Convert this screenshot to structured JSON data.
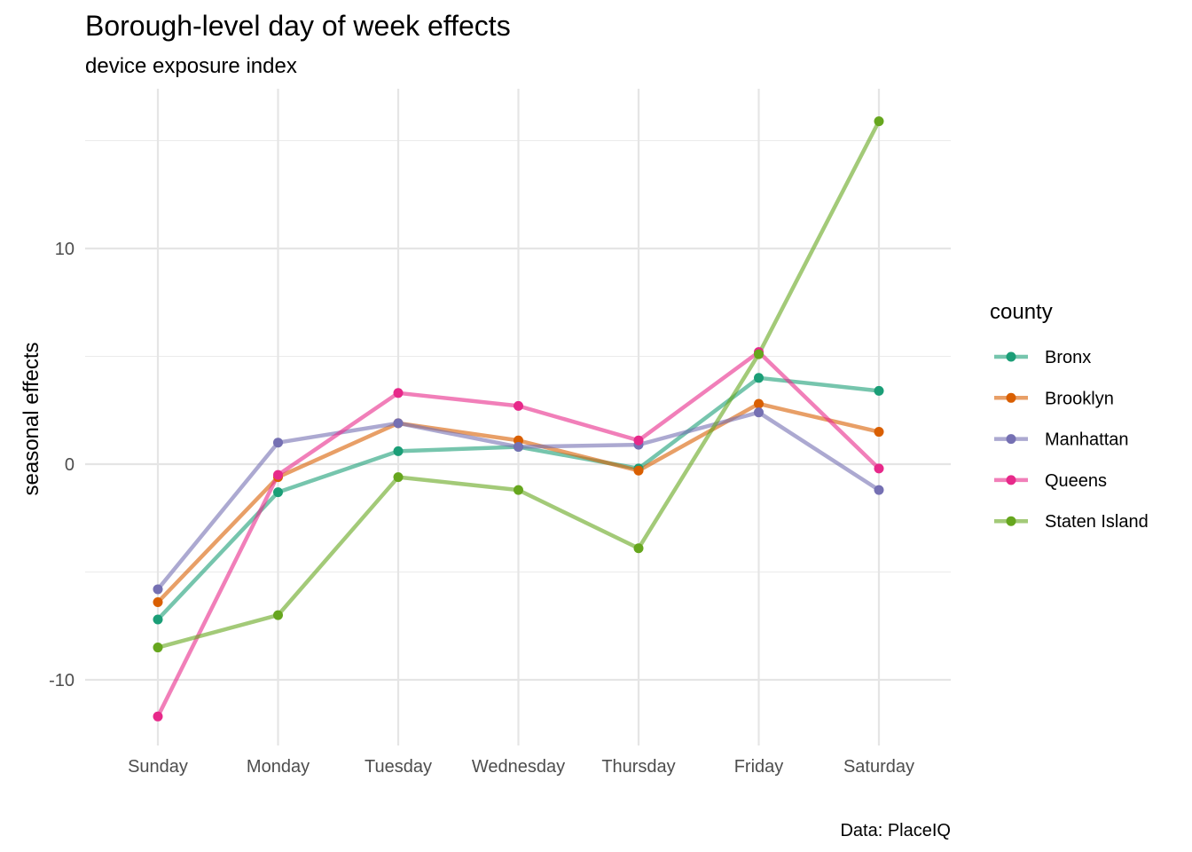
{
  "chart_data": {
    "type": "line",
    "title": "Borough-level day of week effects",
    "subtitle": "device exposure index",
    "xlabel": "",
    "ylabel": "seasonal effects",
    "caption": "Data: PlaceIQ",
    "categories": [
      "Sunday",
      "Monday",
      "Tuesday",
      "Wednesday",
      "Thursday",
      "Friday",
      "Saturday"
    ],
    "ylim": [
      -12.6,
      17.5
    ],
    "yticks": [
      -10,
      0,
      10
    ],
    "grid": true,
    "legend": {
      "title": "county",
      "position": "right"
    },
    "series": [
      {
        "name": "Bronx",
        "color": "#1b9e77",
        "values": [
          -7.2,
          -1.3,
          0.6,
          0.8,
          -0.2,
          4.0,
          3.4
        ]
      },
      {
        "name": "Brooklyn",
        "color": "#d95f02",
        "values": [
          -6.4,
          -0.6,
          1.9,
          1.1,
          -0.3,
          2.8,
          1.5
        ]
      },
      {
        "name": "Manhattan",
        "color": "#7570b3",
        "values": [
          -5.8,
          1.0,
          1.9,
          0.8,
          0.9,
          2.4,
          -1.2
        ]
      },
      {
        "name": "Queens",
        "color": "#e7298a",
        "values": [
          -11.7,
          -0.5,
          3.3,
          2.7,
          1.1,
          5.2,
          -0.2
        ]
      },
      {
        "name": "Staten Island",
        "color": "#66a61e",
        "values": [
          -8.5,
          -7.0,
          -0.6,
          -1.2,
          -3.9,
          5.1,
          15.9
        ]
      }
    ]
  }
}
